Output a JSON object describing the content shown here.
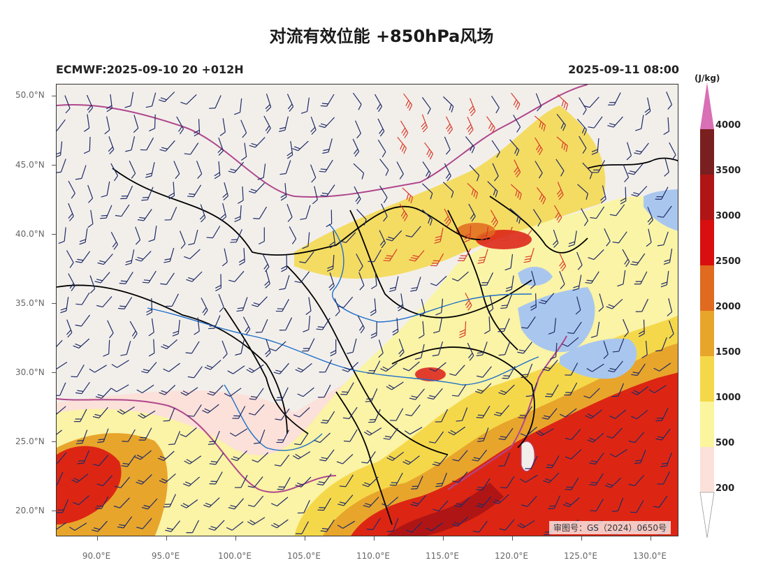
{
  "title": "对流有效位能 +850hPa风场",
  "model_run": "ECMWF:2025-09-10 20 +012H",
  "valid_time": "2025-09-11 08:00",
  "review_number": "审图号：GS（2024）0650号",
  "map": {
    "lon_range": [
      87,
      132
    ],
    "lat_range": [
      18.2,
      50.9
    ],
    "lat_ticks": [
      "50.0°N",
      "45.0°N",
      "40.0°N",
      "35.0°N",
      "30.0°N",
      "25.0°N",
      "20.0°N"
    ],
    "lon_ticks": [
      "90.0°E",
      "95.0°E",
      "100.0°E",
      "105.0°E",
      "110.0°E",
      "115.0°E",
      "120.0°E",
      "125.0°E",
      "130.0°E"
    ]
  },
  "colorbar": {
    "unit": "(J/kg)",
    "labels": [
      "4000",
      "3500",
      "3000",
      "2500",
      "2000",
      "1500",
      "1000",
      "500",
      "200"
    ],
    "colors": {
      "over": "#d96fb4",
      "3500-4000": "#7a1f1f",
      "3000-3500": "#b01515",
      "2500-3000": "#d90f0f",
      "2000-2500": "#e06a20",
      "1500-2000": "#e8a52c",
      "1000-1500": "#f5d84a",
      "500-1000": "#fbf59e",
      "200-500": "#fbe1d9"
    }
  },
  "colors": {
    "land": "#f2efeb",
    "sea": "#a9c7ee",
    "province_border": "#000000",
    "national_border": "#b0478c",
    "rivers": "#1e6fc9",
    "wind_barb_normal": "#1f2b66",
    "wind_barb_strong": "#d83a2a"
  }
}
